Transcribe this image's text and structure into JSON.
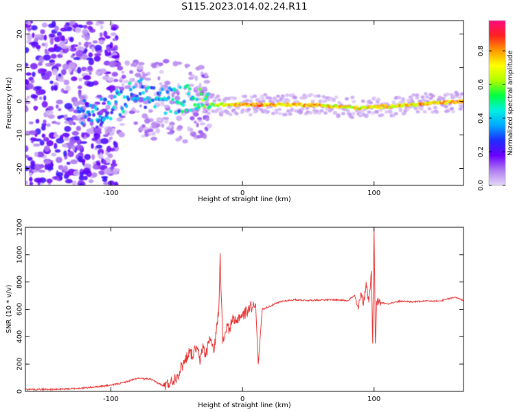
{
  "figure_title": "S115.2023.014.02.24.R11",
  "chart_data": [
    {
      "type": "heatmap",
      "xlabel": "Height of straight line (km)",
      "ylabel": "Frequency (Hz)",
      "xlim": [
        -165,
        168
      ],
      "ylim": [
        -25,
        24
      ],
      "xticks": [
        -100,
        0,
        100
      ],
      "yticks": [
        -20,
        -10,
        0,
        10,
        20
      ],
      "grid": false,
      "colorbar": {
        "label": "Normalized spectral amplitude",
        "range": [
          0,
          0.98
        ],
        "ticks": [
          "0.0",
          "0.2",
          "0.4",
          "0.6",
          "0.8"
        ],
        "colormap": [
          "#e6d7f7",
          "#b07df0",
          "#6a00ff",
          "#1f2cff",
          "#00a8ff",
          "#00f0e0",
          "#00ff40",
          "#b0ff00",
          "#ffff00",
          "#ff9a00",
          "#ff2020",
          "#ff0a80"
        ]
      },
      "ridge": [
        {
          "x": -120,
          "f": -3,
          "amp": 0.3
        },
        {
          "x": -100,
          "f": -2,
          "amp": 0.35
        },
        {
          "x": -80,
          "f": 3,
          "amp": 0.4
        },
        {
          "x": -60,
          "f": 0,
          "amp": 0.35
        },
        {
          "x": -40,
          "f": 1,
          "amp": 0.45
        },
        {
          "x": -25,
          "f": -1,
          "amp": 0.6
        },
        {
          "x": 0,
          "f": -1,
          "amp": 0.8
        },
        {
          "x": 50,
          "f": -1,
          "amp": 0.75
        },
        {
          "x": 90,
          "f": -2,
          "amp": 0.7
        },
        {
          "x": 130,
          "f": -1,
          "amp": 0.75
        },
        {
          "x": 168,
          "f": 0,
          "amp": 0.8
        }
      ]
    },
    {
      "type": "line",
      "xlabel": "Height of straight line (km)",
      "ylabel": "SNR (10 * v/v)",
      "xlim": [
        -165,
        168
      ],
      "ylim": [
        0,
        1200
      ],
      "xticks": [
        -100,
        0,
        100
      ],
      "yticks": [
        0,
        200,
        400,
        600,
        800,
        1000,
        1200
      ],
      "grid": false,
      "series": [
        {
          "color": "#e8302f",
          "x": [
            -165,
            -140,
            -120,
            -110,
            -100,
            -90,
            -80,
            -70,
            -60,
            -55,
            -50,
            -45,
            -40,
            -38,
            -35,
            -32,
            -30,
            -28,
            -25,
            -22,
            -20,
            -18,
            -17,
            -15,
            -12,
            -10,
            -8,
            -5,
            -2,
            0,
            5,
            10,
            12,
            15,
            20,
            25,
            30,
            40,
            50,
            60,
            70,
            80,
            85,
            88,
            90,
            92,
            94,
            96,
            98,
            99,
            100,
            101,
            102,
            105,
            110,
            120,
            130,
            140,
            150,
            158,
            162,
            168
          ],
          "y": [
            15,
            15,
            25,
            35,
            45,
            65,
            95,
            90,
            40,
            60,
            110,
            200,
            300,
            250,
            330,
            220,
            350,
            250,
            400,
            300,
            420,
            600,
            1010,
            350,
            480,
            460,
            520,
            500,
            560,
            550,
            610,
            640,
            200,
            600,
            620,
            640,
            660,
            670,
            665,
            670,
            670,
            665,
            700,
            600,
            720,
            640,
            800,
            650,
            880,
            350,
            1200,
            350,
            660,
            650,
            640,
            660,
            655,
            660,
            660,
            680,
            690,
            665
          ]
        }
      ]
    }
  ]
}
